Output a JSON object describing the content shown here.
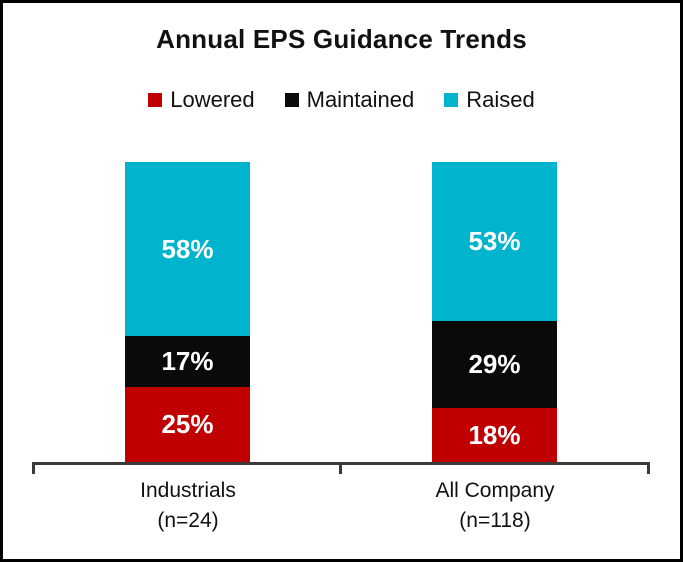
{
  "frame": {
    "background": "#ffffff",
    "border_color": "#000000"
  },
  "chart_data": {
    "type": "bar",
    "stacked": true,
    "orientation": "vertical",
    "title": "Annual EPS Guidance Trends",
    "unit": "%",
    "ylim": [
      0,
      100
    ],
    "grid": false,
    "legend_position": "top",
    "axis_color": "#3a3a3a",
    "categories": [
      {
        "label": "Industrials",
        "sublabel": "(n=24)"
      },
      {
        "label": "All Company",
        "sublabel": "(n=118)"
      }
    ],
    "series": [
      {
        "name": "Lowered",
        "color": "#C00000",
        "values": [
          25,
          18
        ]
      },
      {
        "name": "Maintained",
        "color": "#0A0A0A",
        "values": [
          17,
          29
        ]
      },
      {
        "name": "Raised",
        "color": "#00B4CE",
        "values": [
          58,
          53
        ]
      }
    ],
    "stack_order_top_to_bottom": [
      "Raised",
      "Maintained",
      "Lowered"
    ],
    "data_labels": [
      "58%",
      "17%",
      "25%",
      "53%",
      "29%",
      "18%"
    ]
  }
}
